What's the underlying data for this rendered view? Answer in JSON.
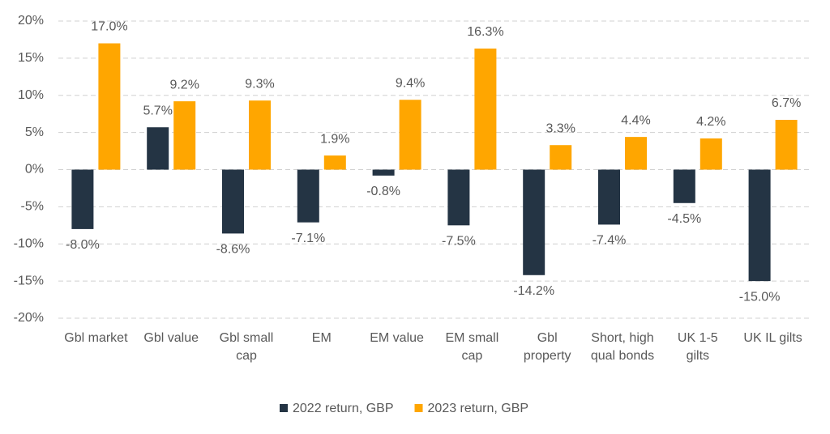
{
  "chart_data": {
    "type": "bar",
    "categories": [
      "Gbl market",
      "Gbl value",
      "Gbl small cap",
      "EM",
      "EM value",
      "EM small cap",
      "Gbl property",
      "Short, high qual bonds",
      "UK 1-5 gilts",
      "UK IL gilts"
    ],
    "series": [
      {
        "name": "2022 return, GBP",
        "color": "#243444",
        "values": [
          -8.0,
          5.7,
          -8.6,
          -7.1,
          -0.8,
          -7.5,
          -14.2,
          -7.4,
          -4.5,
          -15.0
        ],
        "value_labels": [
          "-8.0%",
          "5.7%",
          "-8.6%",
          "-7.1%",
          "-0.8%",
          "-7.5%",
          "-14.2%",
          "-7.4%",
          "-4.5%",
          "-15.0%"
        ]
      },
      {
        "name": "2023 return, GBP",
        "color": "#ffa600",
        "values": [
          17.0,
          9.2,
          9.3,
          1.9,
          9.4,
          16.3,
          3.3,
          4.4,
          4.2,
          6.7
        ],
        "value_labels": [
          "17.0%",
          "9.2%",
          "9.3%",
          "1.9%",
          "9.4%",
          "16.3%",
          "3.3%",
          "4.4%",
          "4.2%",
          "6.7%"
        ]
      }
    ],
    "ylim": [
      -20,
      20
    ],
    "yticks": [
      {
        "value": -20,
        "label": "-20%"
      },
      {
        "value": -15,
        "label": "-15%"
      },
      {
        "value": -10,
        "label": "-10%"
      },
      {
        "value": -5,
        "label": "-5%"
      },
      {
        "value": 0,
        "label": "0%"
      },
      {
        "value": 5,
        "label": "5%"
      },
      {
        "value": 10,
        "label": "10%"
      },
      {
        "value": 15,
        "label": "15%"
      },
      {
        "value": 20,
        "label": "20%"
      }
    ],
    "grid": true,
    "legend": "bottom"
  }
}
